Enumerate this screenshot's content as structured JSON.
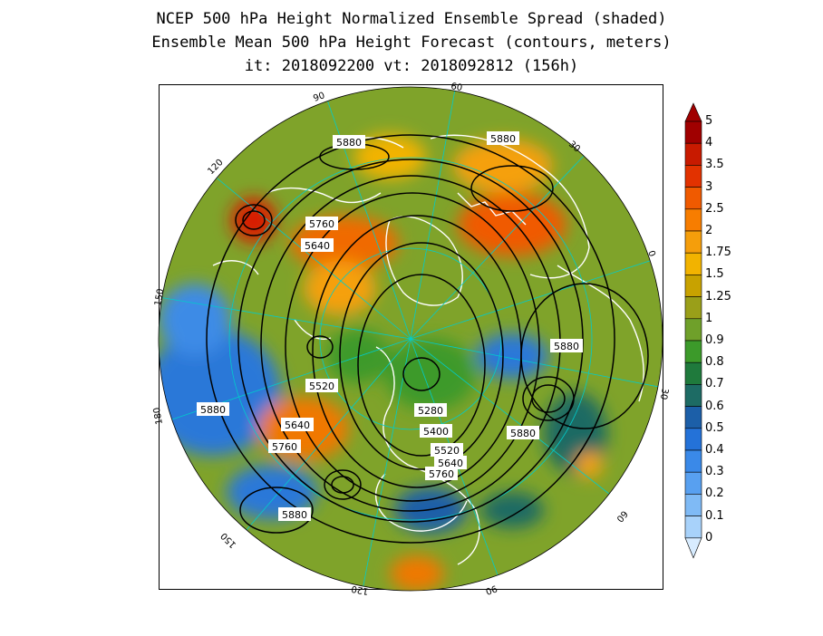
{
  "title": {
    "line1": "NCEP 500 hPa Height Normalized Ensemble Spread (shaded)",
    "line2": "Ensemble Mean 500 hPa Height Forecast (contours, meters)",
    "line3": "it: 2018092200      vt: 2018092812 (156h)"
  },
  "longitude_labels": {
    "lon_60_top": "60",
    "lon_90_upper_left": "90",
    "lon_30": "30",
    "lon_120_upper_left": "120",
    "lon_0": "0",
    "lon_150_left": "150",
    "lon_30_right": "30",
    "lon_180": "180",
    "lon_60_lower_right": "60",
    "lon_150_lower_left": "150",
    "lon_90_bottom": "90",
    "lon_120_bottom": "120"
  },
  "contour_labels": [
    {
      "id": "c1",
      "text": "5880"
    },
    {
      "id": "c2",
      "text": "5880"
    },
    {
      "id": "c3",
      "text": "5760"
    },
    {
      "id": "c4",
      "text": "5640"
    },
    {
      "id": "c5",
      "text": "5880"
    },
    {
      "id": "c6",
      "text": "5520"
    },
    {
      "id": "c7",
      "text": "5880"
    },
    {
      "id": "c8",
      "text": "5280"
    },
    {
      "id": "c9",
      "text": "5880"
    },
    {
      "id": "c10",
      "text": "5640"
    },
    {
      "id": "c11",
      "text": "5400"
    },
    {
      "id": "c12",
      "text": "5760"
    },
    {
      "id": "c13",
      "text": "5520"
    },
    {
      "id": "c14",
      "text": "5640"
    },
    {
      "id": "c15",
      "text": "5760"
    },
    {
      "id": "c16",
      "text": "5880"
    }
  ],
  "colorbar": {
    "levels": [
      "5",
      "4",
      "3.5",
      "3",
      "2.5",
      "2",
      "1.75",
      "1.5",
      "1.25",
      "1",
      "0.9",
      "0.8",
      "0.7",
      "0.6",
      "0.5",
      "0.4",
      "0.3",
      "0.2",
      "0.1",
      "0"
    ],
    "colors": [
      "#a00000",
      "#c81a00",
      "#e23200",
      "#f05a00",
      "#f77d00",
      "#f59e0b",
      "#f2b300",
      "#c8a200",
      "#9a9f19",
      "#6fa02a",
      "#3c9a2a",
      "#1f7a3c",
      "#1d6b64",
      "#1c5fa8",
      "#2472d8",
      "#3a89e8",
      "#58a0f0",
      "#7fbaf5",
      "#a8d2fa",
      "#d8ecff"
    ]
  },
  "map_colors": {
    "land_outline": "#ffffff",
    "grid": "#00cccc",
    "contour": "#000000"
  }
}
